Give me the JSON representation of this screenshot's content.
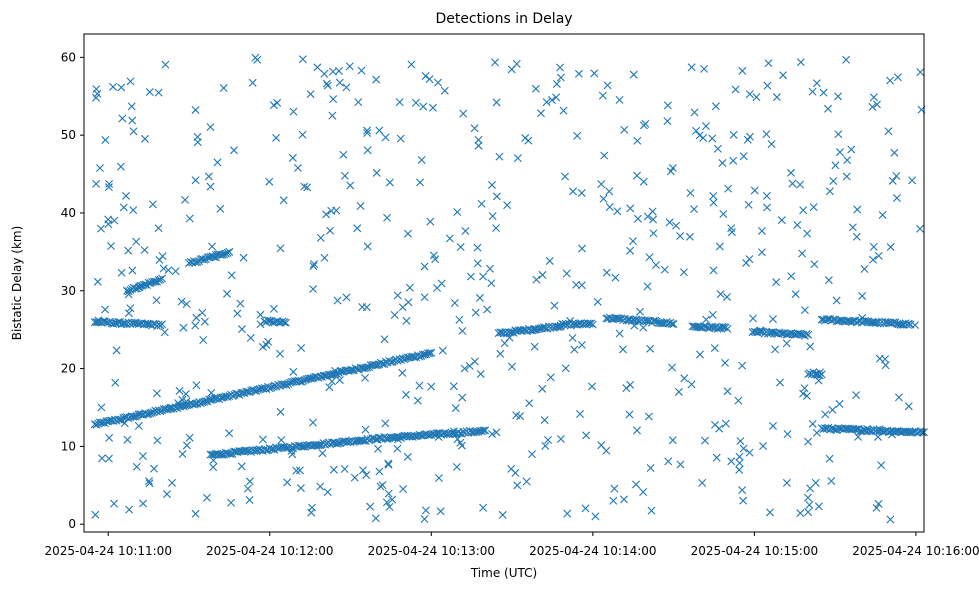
{
  "chart_data": {
    "type": "scatter",
    "title": "Detections in Delay",
    "xlabel": "Time (UTC)",
    "ylabel": "Bistatic Delay (km)",
    "x_ticks": [
      "2025-04-24 10:11:00",
      "2025-04-24 10:12:00",
      "2025-04-24 10:13:00",
      "2025-04-24 10:14:00",
      "2025-04-24 10:15:00",
      "2025-04-24 10:16:00"
    ],
    "y_ticks": [
      "0",
      "10",
      "20",
      "30",
      "40",
      "50",
      "60"
    ],
    "xlim": [
      "2025-04-24 10:10:51",
      "2025-04-24 10:16:03"
    ],
    "ylim": [
      -1,
      63
    ],
    "marker": "x",
    "color": "#1f77b4",
    "grid": false,
    "series": [
      {
        "tracks": [
          {
            "start": "2025-04-24 10:10:55",
            "end": "2025-04-24 10:13:00",
            "delay_start_km": 12.8,
            "delay_end_km": 22.0
          },
          {
            "start": "2025-04-24 10:10:55",
            "end": "2025-04-24 10:11:20",
            "delay_start_km": 26.0,
            "delay_end_km": 25.6
          },
          {
            "start": "2025-04-24 10:11:30",
            "end": "2025-04-24 10:11:45",
            "delay_start_km": 33.5,
            "delay_end_km": 35.0
          },
          {
            "start": "2025-04-24 10:11:07",
            "end": "2025-04-24 10:11:20",
            "delay_start_km": 30.0,
            "delay_end_km": 31.5
          },
          {
            "start": "2025-04-24 10:11:58",
            "end": "2025-04-24 10:12:06",
            "delay_start_km": 26.1,
            "delay_end_km": 25.9
          },
          {
            "start": "2025-04-24 10:11:38",
            "end": "2025-04-24 10:12:40",
            "delay_start_km": 8.9,
            "delay_end_km": 11.0
          },
          {
            "start": "2025-04-24 10:12:40",
            "end": "2025-04-24 10:13:20",
            "delay_start_km": 11.0,
            "delay_end_km": 12.0
          },
          {
            "start": "2025-04-24 10:13:25",
            "end": "2025-04-24 10:13:48",
            "delay_start_km": 24.5,
            "delay_end_km": 25.5
          },
          {
            "start": "2025-04-24 10:13:48",
            "end": "2025-04-24 10:14:00",
            "delay_start_km": 25.6,
            "delay_end_km": 25.8
          },
          {
            "start": "2025-04-24 10:14:05",
            "end": "2025-04-24 10:14:30",
            "delay_start_km": 26.5,
            "delay_end_km": 25.8
          },
          {
            "start": "2025-04-24 10:14:37",
            "end": "2025-04-24 10:14:50",
            "delay_start_km": 25.4,
            "delay_end_km": 25.2
          },
          {
            "start": "2025-04-24 10:15:00",
            "end": "2025-04-24 10:15:20",
            "delay_start_km": 24.7,
            "delay_end_km": 24.3
          },
          {
            "start": "2025-04-24 10:15:25",
            "end": "2025-04-24 10:15:58",
            "delay_start_km": 26.3,
            "delay_end_km": 25.7
          },
          {
            "start": "2025-04-24 10:15:25",
            "end": "2025-04-24 10:16:03",
            "delay_start_km": 12.3,
            "delay_end_km": 11.8
          },
          {
            "start": "2025-04-24 10:15:20",
            "end": "2025-04-24 10:15:25",
            "delay_start_km": 19.4,
            "delay_end_km": 19.4
          }
        ],
        "clutter": {
          "count": 620,
          "time_range": [
            "2025-04-24 10:10:55",
            "2025-04-24 10:16:03"
          ],
          "delay_range_km": [
            0.5,
            60
          ]
        }
      }
    ]
  }
}
